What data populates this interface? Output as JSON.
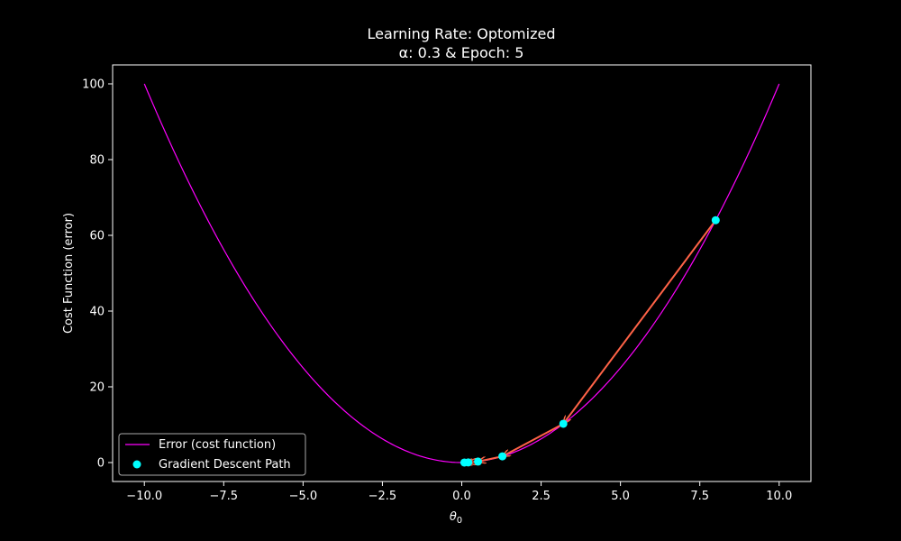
{
  "chart_data": {
    "type": "line",
    "title_line1": "Learning Rate: Optomized",
    "title_line2": "α: 0.3 & Epoch: 5",
    "xlabel_symbol": "θ",
    "xlabel_subscript": "0",
    "ylabel": "Cost Function (error)",
    "xlim": [
      -11,
      11
    ],
    "ylim": [
      -5,
      105
    ],
    "xticks": [
      -10,
      -7.5,
      -5,
      -2.5,
      0,
      2.5,
      5,
      7.5,
      10
    ],
    "xtick_labels": [
      "−10.0",
      "−7.5",
      "−5.0",
      "−2.5",
      "0.0",
      "2.5",
      "5.0",
      "7.5",
      "10.0"
    ],
    "yticks": [
      0,
      20,
      40,
      60,
      80,
      100
    ],
    "ytick_labels": [
      "0",
      "20",
      "40",
      "60",
      "80",
      "100"
    ],
    "grid": false,
    "legend_position": "lower-left",
    "series": [
      {
        "name": "Error (cost function)",
        "kind": "line",
        "function": "y = x^2",
        "x_range": [
          -10,
          10
        ],
        "color": "#ff00ff"
      },
      {
        "name": "Gradient Descent Path",
        "kind": "scatter",
        "color": "#00ffff",
        "points": [
          {
            "x": 8.0,
            "y": 64.0
          },
          {
            "x": 3.2,
            "y": 10.24
          },
          {
            "x": 1.28,
            "y": 1.64
          },
          {
            "x": 0.512,
            "y": 0.26
          },
          {
            "x": 0.205,
            "y": 0.04
          },
          {
            "x": 0.082,
            "y": 0.007
          }
        ]
      }
    ],
    "arrows": {
      "color": "#ff6347",
      "from_to": [
        [
          8.0,
          64.0,
          3.2,
          10.24
        ],
        [
          3.2,
          10.24,
          1.28,
          1.64
        ],
        [
          1.28,
          1.64,
          0.512,
          0.26
        ],
        [
          0.512,
          0.26,
          0.205,
          0.04
        ],
        [
          0.205,
          0.04,
          0.082,
          0.007
        ]
      ]
    },
    "colors": {
      "background": "#000000",
      "axes": "#ffffff",
      "legend_frame": "#aaaaaa"
    }
  }
}
